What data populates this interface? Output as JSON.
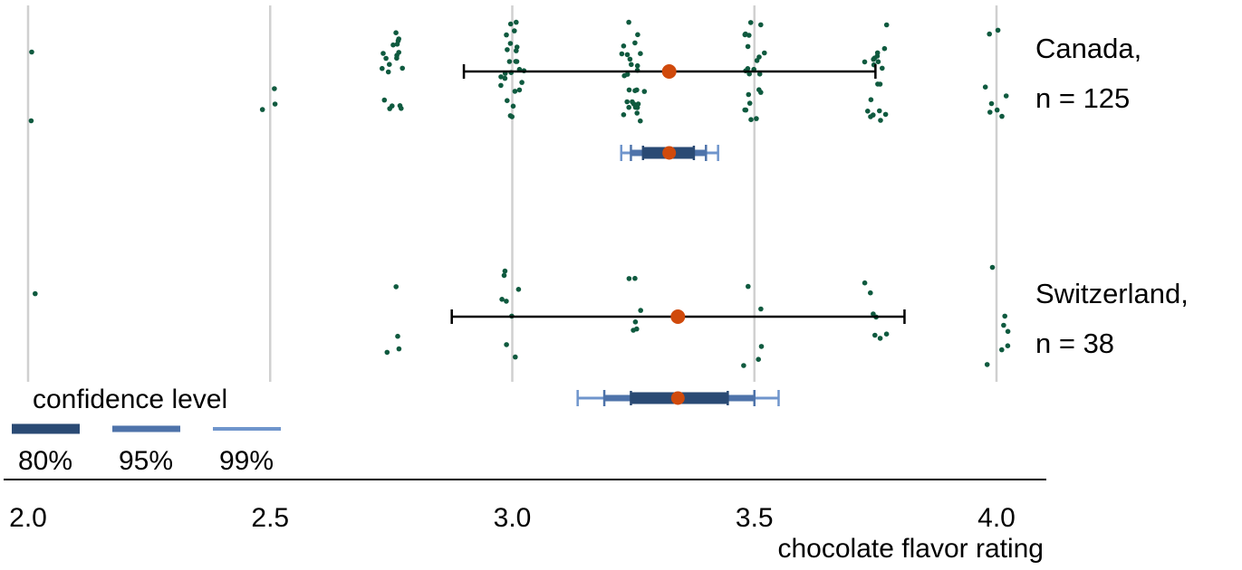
{
  "chart_data": {
    "type": "scatter",
    "xlabel": "chocolate flavor rating",
    "xlim": [
      1.98,
      4.05
    ],
    "x_ticks": [
      "2.0",
      "2.5",
      "3.0",
      "3.5",
      "4.0"
    ],
    "x_tick_values": [
      2.0,
      2.5,
      3.0,
      3.5,
      4.0
    ],
    "grid": "vertical",
    "colors": {
      "points": "#0f5a3f",
      "mean": "#d04a0c",
      "sd_bar": "#000000",
      "ci80": "#2a4a74",
      "ci95": "#4e73aa",
      "ci99": "#6f95cc",
      "grid": "#d0d0d0"
    },
    "groups": [
      {
        "label_line1": "Canada,",
        "label_line2": "n = 125",
        "n": 125,
        "mean": 3.324,
        "sd_range": [
          2.9,
          3.75
        ],
        "ci80": [
          3.27,
          3.375
        ],
        "ci95": [
          3.245,
          3.4
        ],
        "ci99": [
          3.225,
          3.425
        ],
        "ratings": [
          {
            "value": 2.0,
            "count": 2
          },
          {
            "value": 2.5,
            "count": 3
          },
          {
            "value": 2.75,
            "count": 19
          },
          {
            "value": 3.0,
            "count": 25
          },
          {
            "value": 3.25,
            "count": 27
          },
          {
            "value": 3.5,
            "count": 22
          },
          {
            "value": 3.75,
            "count": 19
          },
          {
            "value": 4.0,
            "count": 8
          }
        ]
      },
      {
        "label_line1": "Switzerland,",
        "label_line2": "n = 38",
        "n": 38,
        "mean": 3.342,
        "sd_range": [
          2.875,
          3.81
        ],
        "ci80": [
          3.245,
          3.445
        ],
        "ci95": [
          3.19,
          3.5
        ],
        "ci99": [
          3.135,
          3.55
        ],
        "ratings": [
          {
            "value": 2.0,
            "count": 1
          },
          {
            "value": 2.75,
            "count": 4
          },
          {
            "value": 3.0,
            "count": 8
          },
          {
            "value": 3.25,
            "count": 6
          },
          {
            "value": 3.5,
            "count": 5
          },
          {
            "value": 3.75,
            "count": 7
          },
          {
            "value": 4.0,
            "count": 7
          }
        ]
      }
    ],
    "legend": {
      "title": "confidence level",
      "position": "bottom-left",
      "items": [
        {
          "label": "80%",
          "color": "#2a4a74"
        },
        {
          "label": "95%",
          "color": "#4e73aa"
        },
        {
          "label": "99%",
          "color": "#6f95cc"
        }
      ]
    }
  }
}
